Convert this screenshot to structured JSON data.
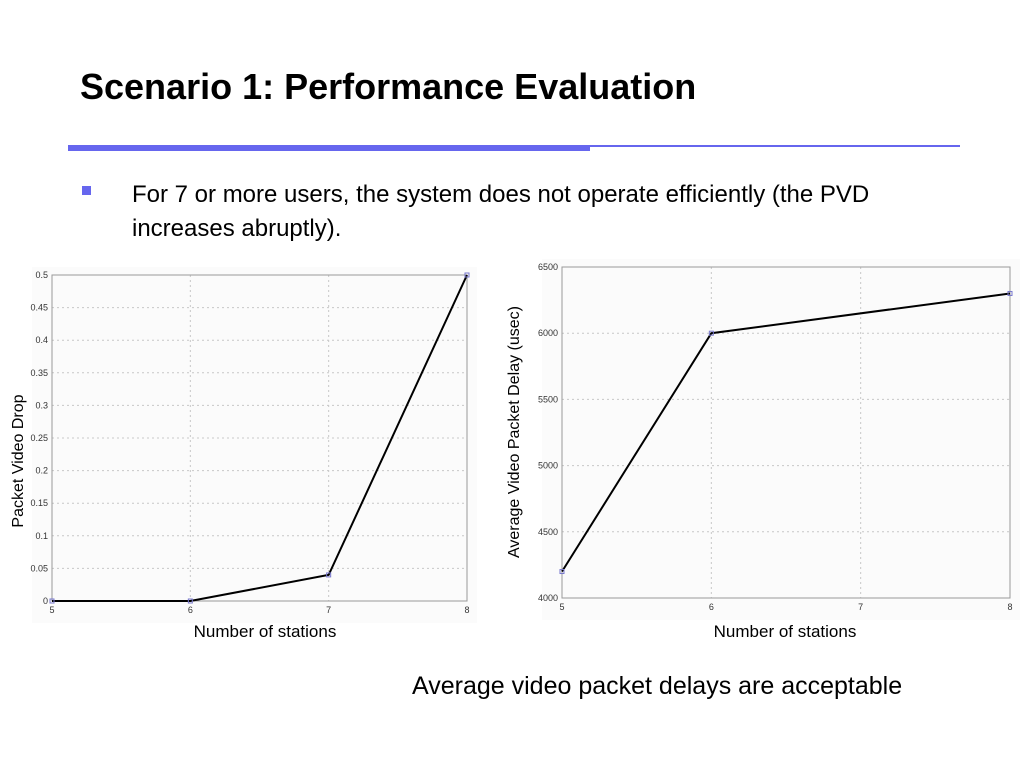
{
  "slide": {
    "title": "Scenario 1: Performance Evaluation",
    "accent_color": "#6666ee",
    "bullets": [
      "For 7 or more users, the system does not operate efficiently (the PVD increases abruptly)."
    ],
    "caption": "Average video packet delays are acceptable"
  },
  "chart_data": [
    {
      "type": "line",
      "x": [
        5,
        6,
        7,
        8
      ],
      "y": [
        0,
        0,
        0.04,
        0.5
      ],
      "xlabel": "Number of stations",
      "ylabel": "Packet Video Drop",
      "xlim": [
        5,
        8
      ],
      "ylim": [
        0,
        0.5
      ],
      "xticks": [
        "5",
        "6",
        "7",
        "8"
      ],
      "yticks": [
        "0",
        "0.05",
        "0.1",
        "0.15",
        "0.2",
        "0.25",
        "0.3",
        "0.35",
        "0.4",
        "0.45",
        "0.5"
      ],
      "grid": true,
      "line_color": "#000000",
      "marker_color": "#7777cc"
    },
    {
      "type": "line",
      "x": [
        5,
        6,
        8
      ],
      "y": [
        4200,
        6000,
        6300
      ],
      "xlabel": "Number of stations",
      "ylabel": "Average Video Packet Delay (usec)",
      "xlim": [
        5,
        8
      ],
      "ylim": [
        4000,
        6500
      ],
      "xticks": [
        "5",
        "6",
        "7",
        "8"
      ],
      "yticks": [
        "4000",
        "4500",
        "5000",
        "5500",
        "6000",
        "6500"
      ],
      "grid": true,
      "line_color": "#000000",
      "marker_color": "#7777cc"
    }
  ]
}
